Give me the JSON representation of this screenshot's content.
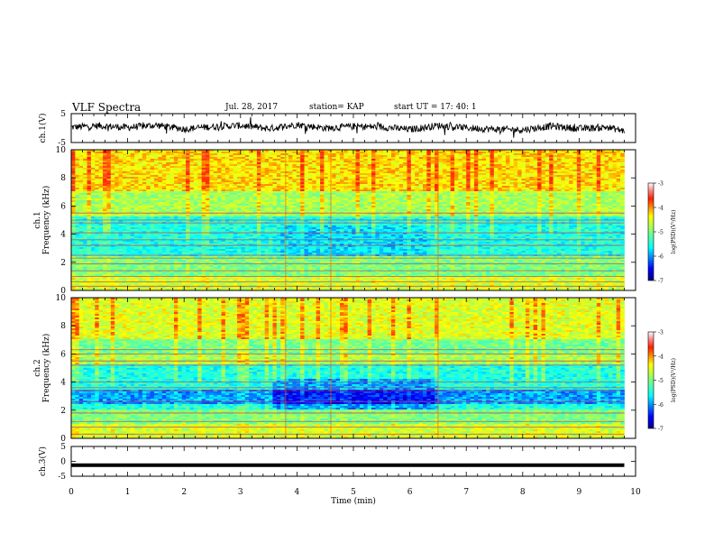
{
  "header": {
    "title": "VLF Spectra",
    "date": "Jul. 28, 2017",
    "station": "station= KAP",
    "start": "start UT =  17: 40: 1"
  },
  "chart_data": [
    {
      "type": "line",
      "panel": "ch1-waveform",
      "ylabel": "ch.1(V)",
      "ylim": [
        -5,
        5
      ],
      "yticks": [
        "5",
        "-5"
      ],
      "x_range_min": [
        0,
        9.8
      ],
      "description_series": "noisy waveform between about -2 and 2 V",
      "x": [
        0,
        0.5,
        1.0,
        1.5,
        2.0,
        2.5,
        3.0,
        3.5,
        4.0,
        4.5,
        5.0,
        5.5,
        6.0,
        6.5,
        7.0,
        7.5,
        8.0,
        8.5,
        9.0,
        9.5,
        9.8
      ],
      "y": [
        0.3,
        0.8,
        0.2,
        1.0,
        -0.3,
        0.5,
        0.9,
        -0.2,
        1.2,
        0.0,
        0.6,
        0.4,
        -0.5,
        0.9,
        0.1,
        -0.4,
        -0.6,
        0.7,
        -0.2,
        0.3,
        -1.0
      ]
    },
    {
      "type": "heatmap",
      "panel": "ch1-spectrogram",
      "ylabel": "ch.1\nFrequency (kHz)",
      "xlim": [
        0,
        10
      ],
      "ylim": [
        0,
        10
      ],
      "yticks": [
        "0",
        "2",
        "4",
        "6",
        "8",
        "10"
      ],
      "colorbar": {
        "label": "log(PSD)(V²/Hz)",
        "range": [
          -7,
          -3
        ],
        "ticks": [
          "-3",
          "-4",
          "-5",
          "-6",
          "-7"
        ]
      }
    },
    {
      "type": "heatmap",
      "panel": "ch2-spectrogram",
      "ylabel": "ch.2\nFrequency (kHz)",
      "xlim": [
        0,
        10
      ],
      "ylim": [
        0,
        10
      ],
      "yticks": [
        "0",
        "2",
        "4",
        "6",
        "8",
        "10"
      ],
      "colorbar": {
        "label": "log(PSD)(V²/Hz)",
        "range": [
          -7,
          -3
        ],
        "ticks": [
          "-3",
          "-4",
          "-5",
          "-6",
          "-7"
        ]
      }
    },
    {
      "type": "line",
      "panel": "ch3-waveform",
      "ylabel": "ch.3(V)",
      "ylim": [
        -5,
        5
      ],
      "yticks": [
        "5",
        "0",
        "-5"
      ],
      "x": [
        0,
        9.8
      ],
      "y": [
        -1.3,
        -1.3
      ]
    }
  ],
  "xaxis": {
    "label": "Time (min)",
    "ticks": [
      "0",
      "1",
      "2",
      "3",
      "4",
      "5",
      "6",
      "7",
      "8",
      "9",
      "10"
    ],
    "range": [
      0,
      10
    ]
  },
  "colors": {
    "jet": [
      "#00007f",
      "#0000ff",
      "#00bfff",
      "#00ffff",
      "#7fff7f",
      "#c8ff00",
      "#ffff00",
      "#ff8000",
      "#ff0000",
      "#ffffff"
    ]
  }
}
